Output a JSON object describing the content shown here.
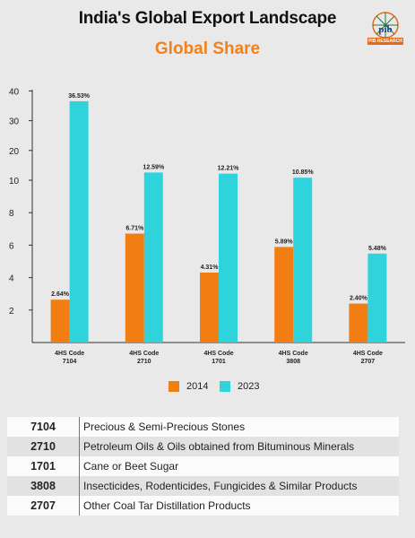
{
  "header": {
    "title": "India's Global Export Landscape",
    "subtitle": "Global Share",
    "logo_text": "PIB RESEARCH UNIT"
  },
  "colors": {
    "series_2014": "#f27d13",
    "series_2023": "#2fd3dc",
    "subtitle": "#f2811d",
    "background": "#e9e9e9"
  },
  "chart_data": {
    "type": "bar",
    "title": "Global Share",
    "categories": [
      "4HS Code 7104",
      "4HS Code 2710",
      "4HS Code 1701",
      "4HS Code 3808",
      "4HS Code 2707"
    ],
    "category_lines": [
      [
        "4HS Code",
        "7104"
      ],
      [
        "4HS Code",
        "2710"
      ],
      [
        "4HS Code",
        "1701"
      ],
      [
        "4HS Code",
        "3808"
      ],
      [
        "4HS Code",
        "2707"
      ]
    ],
    "series": [
      {
        "name": "2014",
        "values": [
          2.64,
          6.71,
          4.31,
          5.89,
          2.4
        ],
        "labels": [
          "2.64%",
          "6.71%",
          "4.31%",
          "5.89%",
          "2.40%"
        ]
      },
      {
        "name": "2023",
        "values": [
          36.53,
          12.59,
          12.21,
          10.85,
          5.48
        ],
        "labels": [
          "36.53%",
          "12.59%",
          "12.21%",
          "10.85%",
          "5.48%"
        ]
      }
    ],
    "y_ticks": [
      2,
      4,
      6,
      8,
      10,
      20,
      30,
      40
    ],
    "y_scale": "piecewise (0-10 linear, 10-40 compressed)",
    "ylim": [
      0,
      40
    ],
    "grid": false,
    "legend_position": "bottom"
  },
  "legend": [
    {
      "label": "2014"
    },
    {
      "label": "2023"
    }
  ],
  "table": {
    "rows": [
      {
        "code": "7104",
        "description": "Precious & Semi-Precious Stones"
      },
      {
        "code": "2710",
        "description": "Petroleum Oils & Oils obtained from Bituminous Minerals"
      },
      {
        "code": "1701",
        "description": "Cane or Beet Sugar"
      },
      {
        "code": "3808",
        "description": "Insecticides, Rodenticides, Fungicides & Similar Products"
      },
      {
        "code": "2707",
        "description": "Other Coal Tar Distillation Products"
      }
    ]
  }
}
